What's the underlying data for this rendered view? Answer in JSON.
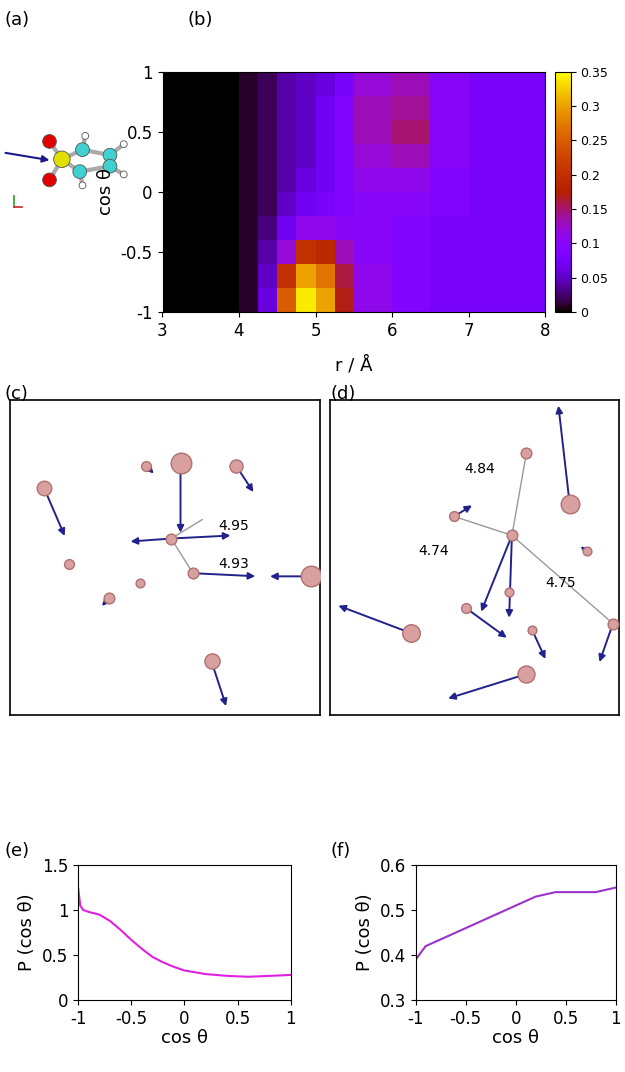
{
  "panels": {
    "a": {
      "label": "(a)"
    },
    "c": {
      "label": "(c)",
      "distances": [
        "4.95",
        "4.93"
      ]
    },
    "d": {
      "label": "(d)",
      "distances": [
        "4.84",
        "4.74",
        "4.75"
      ]
    }
  },
  "chart_data": [
    {
      "panel_label": "(b)",
      "type": "heatmap",
      "x_label": "r / Å",
      "y_label": "cos θ",
      "x_edges": [
        3,
        3.5,
        4,
        4.25,
        4.5,
        4.75,
        5,
        5.25,
        5.5,
        6,
        6.5,
        7,
        7.5,
        8
      ],
      "y_edges": [
        -1,
        -0.8,
        -0.6,
        -0.4,
        -0.2,
        0,
        0.2,
        0.4,
        0.6,
        0.8,
        1
      ],
      "cells": [
        [
          0,
          0,
          0.01,
          0.06,
          0.25,
          0.34,
          0.3,
          0.17,
          0.11,
          0.09,
          0.08,
          0.08,
          0.08
        ],
        [
          0,
          0,
          0.01,
          0.05,
          0.2,
          0.3,
          0.27,
          0.16,
          0.11,
          0.09,
          0.08,
          0.08,
          0.08
        ],
        [
          0,
          0,
          0.01,
          0.04,
          0.12,
          0.2,
          0.19,
          0.13,
          0.1,
          0.09,
          0.08,
          0.08,
          0.08
        ],
        [
          0,
          0,
          0.01,
          0.03,
          0.07,
          0.11,
          0.11,
          0.1,
          0.1,
          0.09,
          0.08,
          0.08,
          0.08
        ],
        [
          0,
          0,
          0.01,
          0.02,
          0.05,
          0.07,
          0.08,
          0.09,
          0.1,
          0.1,
          0.09,
          0.08,
          0.08
        ],
        [
          0,
          0,
          0.01,
          0.02,
          0.04,
          0.06,
          0.07,
          0.09,
          0.11,
          0.11,
          0.09,
          0.08,
          0.08
        ],
        [
          0,
          0,
          0.01,
          0.02,
          0.04,
          0.05,
          0.07,
          0.09,
          0.12,
          0.13,
          0.1,
          0.08,
          0.08
        ],
        [
          0,
          0,
          0.01,
          0.02,
          0.04,
          0.05,
          0.07,
          0.09,
          0.13,
          0.15,
          0.1,
          0.08,
          0.08
        ],
        [
          0,
          0,
          0.01,
          0.02,
          0.04,
          0.05,
          0.07,
          0.09,
          0.13,
          0.14,
          0.1,
          0.08,
          0.08
        ],
        [
          0,
          0,
          0.01,
          0.02,
          0.04,
          0.05,
          0.06,
          0.08,
          0.12,
          0.13,
          0.1,
          0.08,
          0.08
        ]
      ],
      "xlim": [
        3,
        8
      ],
      "xticks": [
        3,
        4,
        5,
        6,
        7,
        8
      ],
      "ylim": [
        -1,
        1
      ],
      "yticks": [
        -1,
        -0.5,
        0,
        0.5,
        1
      ],
      "colorbar": {
        "range": [
          0,
          0.35
        ],
        "ticks": [
          0,
          0.05,
          0.1,
          0.15,
          0.2,
          0.25,
          0.3,
          0.35
        ]
      }
    },
    {
      "panel_label": "(e)",
      "type": "line",
      "x_label": "cos θ",
      "y_label": "P (cos θ)",
      "x": [
        -1,
        -0.98,
        -0.95,
        -0.9,
        -0.8,
        -0.7,
        -0.6,
        -0.5,
        -0.4,
        -0.3,
        -0.2,
        -0.1,
        0,
        0.2,
        0.4,
        0.6,
        0.8,
        1
      ],
      "values": [
        1.25,
        1.05,
        1.0,
        0.98,
        0.95,
        0.88,
        0.78,
        0.67,
        0.57,
        0.48,
        0.42,
        0.37,
        0.33,
        0.29,
        0.27,
        0.26,
        0.27,
        0.28
      ],
      "color": "#e020e0",
      "xlim": [
        -1,
        1
      ],
      "xticks": [
        -1,
        -0.5,
        0,
        0.5,
        1
      ],
      "ylim": [
        0,
        1.5
      ],
      "yticks": [
        0,
        0.5,
        1,
        1.5
      ]
    },
    {
      "panel_label": "(f)",
      "type": "line",
      "x_label": "cos θ",
      "y_label": "P (cos θ)",
      "x": [
        -1,
        -0.9,
        -0.8,
        -0.6,
        -0.4,
        -0.2,
        0,
        0.2,
        0.4,
        0.6,
        0.8,
        1
      ],
      "values": [
        0.39,
        0.42,
        0.43,
        0.45,
        0.47,
        0.49,
        0.51,
        0.53,
        0.54,
        0.54,
        0.54,
        0.55
      ],
      "color": "#9933cc",
      "xlim": [
        -1,
        1
      ],
      "xticks": [
        -1,
        -0.5,
        0,
        0.5,
        1
      ],
      "ylim": [
        0.3,
        0.6
      ],
      "yticks": [
        0.3,
        0.4,
        0.5,
        0.6
      ]
    }
  ]
}
